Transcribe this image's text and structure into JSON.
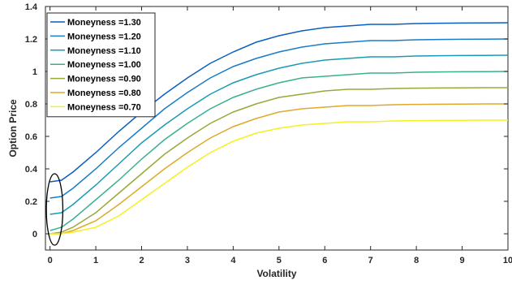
{
  "chart_data": {
    "type": "line",
    "xlabel": "Volatility",
    "ylabel": "Option Price",
    "xlim": [
      -0.1,
      10
    ],
    "ylim": [
      -0.1,
      1.4
    ],
    "xticks": [
      "0",
      "1",
      "2",
      "3",
      "4",
      "5",
      "6",
      "7",
      "8",
      "9",
      "10"
    ],
    "yticks": [
      "0",
      "0.2",
      "0.4",
      "0.6",
      "0.8",
      "1",
      "1.2",
      "1.4"
    ],
    "grid": false,
    "legend_position": "top-left",
    "series": [
      {
        "name": "Moneyness =1.30",
        "color": "#0a5fbf",
        "x": [
          0,
          0.25,
          0.5,
          1,
          1.5,
          2,
          2.5,
          3,
          3.5,
          4,
          4.5,
          5,
          5.5,
          6,
          6.5,
          7,
          7.5,
          8,
          8.5,
          9,
          9.5,
          10
        ],
        "y": [
          0.32,
          0.33,
          0.38,
          0.5,
          0.63,
          0.75,
          0.86,
          0.96,
          1.05,
          1.12,
          1.18,
          1.22,
          1.25,
          1.27,
          1.28,
          1.29,
          1.29,
          1.295,
          1.297,
          1.298,
          1.299,
          1.3
        ]
      },
      {
        "name": "Moneyness =1.20",
        "color": "#1a7cc8",
        "x": [
          0,
          0.25,
          0.5,
          1,
          1.5,
          2,
          2.5,
          3,
          3.5,
          4,
          4.5,
          5,
          5.5,
          6,
          6.5,
          7,
          7.5,
          8,
          8.5,
          9,
          9.5,
          10
        ],
        "y": [
          0.22,
          0.23,
          0.28,
          0.4,
          0.53,
          0.65,
          0.77,
          0.87,
          0.96,
          1.03,
          1.08,
          1.12,
          1.15,
          1.17,
          1.18,
          1.19,
          1.19,
          1.195,
          1.197,
          1.198,
          1.199,
          1.2
        ]
      },
      {
        "name": "Moneyness =1.10",
        "color": "#1a9bb5",
        "x": [
          0,
          0.25,
          0.5,
          1,
          1.5,
          2,
          2.5,
          3,
          3.5,
          4,
          4.5,
          5,
          5.5,
          6,
          6.5,
          7,
          7.5,
          8,
          8.5,
          9,
          9.5,
          10
        ],
        "y": [
          0.12,
          0.13,
          0.18,
          0.3,
          0.43,
          0.56,
          0.67,
          0.77,
          0.86,
          0.93,
          0.98,
          1.02,
          1.05,
          1.07,
          1.08,
          1.09,
          1.09,
          1.095,
          1.097,
          1.098,
          1.099,
          1.1
        ]
      },
      {
        "name": "Moneyness =1.00",
        "color": "#3ab08f",
        "x": [
          0,
          0.25,
          0.5,
          1,
          1.5,
          2,
          2.5,
          3,
          3.5,
          4,
          4.5,
          5,
          5.5,
          6,
          6.5,
          7,
          7.5,
          8,
          8.5,
          9,
          9.5,
          10
        ],
        "y": [
          0.02,
          0.04,
          0.09,
          0.21,
          0.33,
          0.46,
          0.58,
          0.68,
          0.77,
          0.84,
          0.89,
          0.93,
          0.96,
          0.97,
          0.98,
          0.99,
          0.99,
          0.995,
          0.997,
          0.998,
          0.999,
          1.0
        ]
      },
      {
        "name": "Moneyness =0.90",
        "color": "#9aa83a",
        "x": [
          0,
          0.25,
          0.5,
          1,
          1.5,
          2,
          2.5,
          3,
          3.5,
          4,
          4.5,
          5,
          5.5,
          6,
          6.5,
          7,
          7.5,
          8,
          8.5,
          9,
          9.5,
          10
        ],
        "y": [
          0.0,
          0.01,
          0.04,
          0.13,
          0.25,
          0.37,
          0.49,
          0.59,
          0.68,
          0.75,
          0.8,
          0.84,
          0.86,
          0.88,
          0.89,
          0.89,
          0.895,
          0.897,
          0.898,
          0.899,
          0.9,
          0.9
        ]
      },
      {
        "name": "Moneyness =0.80",
        "color": "#e0a92a",
        "x": [
          0,
          0.25,
          0.5,
          1,
          1.5,
          2,
          2.5,
          3,
          3.5,
          4,
          4.5,
          5,
          5.5,
          6,
          6.5,
          7,
          7.5,
          8,
          8.5,
          9,
          9.5,
          10
        ],
        "y": [
          0.0,
          0.0,
          0.02,
          0.08,
          0.18,
          0.29,
          0.4,
          0.5,
          0.59,
          0.66,
          0.71,
          0.75,
          0.77,
          0.78,
          0.79,
          0.79,
          0.795,
          0.797,
          0.798,
          0.799,
          0.8,
          0.8
        ]
      },
      {
        "name": "Moneyness =0.70",
        "color": "#f5f020",
        "x": [
          0,
          0.25,
          0.5,
          1,
          1.5,
          2,
          2.5,
          3,
          3.5,
          4,
          4.5,
          5,
          5.5,
          6,
          6.5,
          7,
          7.5,
          8,
          8.5,
          9,
          9.5,
          10
        ],
        "y": [
          0.0,
          0.0,
          0.01,
          0.04,
          0.11,
          0.21,
          0.31,
          0.41,
          0.5,
          0.57,
          0.62,
          0.65,
          0.67,
          0.68,
          0.69,
          0.69,
          0.695,
          0.697,
          0.698,
          0.699,
          0.7,
          0.7
        ]
      }
    ],
    "annotation": {
      "shape": "ellipse",
      "cx": 0.1,
      "cy": 0.15,
      "rx": 0.18,
      "ry": 0.22
    }
  }
}
